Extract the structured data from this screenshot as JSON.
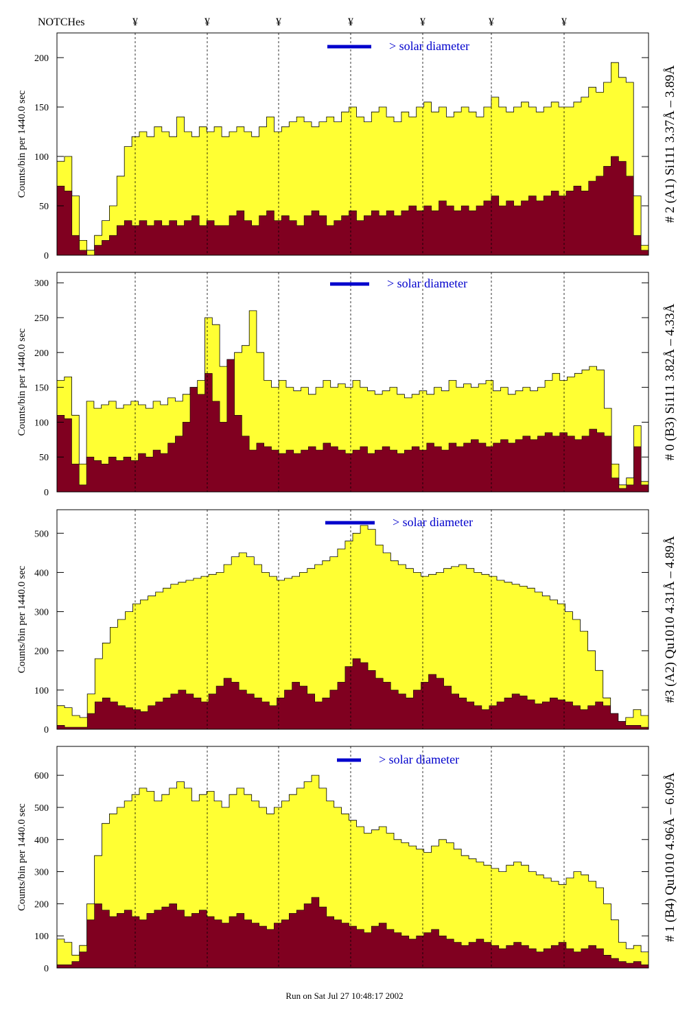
{
  "header": {
    "notches_label": "NOTCHes",
    "notch_symbol": "¥"
  },
  "footer": {
    "run_text": "Run on Sat Jul 27 10:48:17 2002"
  },
  "colors": {
    "hist_fill": "#ffff33",
    "dark_fill": "#800020",
    "legend": "#0000cc",
    "axis": "#000000"
  },
  "chart_data": [
    {
      "type": "area",
      "ylabel": "Counts/bin per   1440.0 sec",
      "side_label": "# 2 (A1) Si111  3.37Å – 3.89Å",
      "legend_text": "> solar diameter",
      "ylim": [
        0,
        225
      ],
      "yticks": [
        0,
        50,
        100,
        150,
        200
      ],
      "grid": false,
      "series": [
        {
          "values": [
            95,
            100,
            60,
            15,
            5,
            20,
            35,
            50,
            80,
            110,
            120,
            125,
            120,
            130,
            125,
            120,
            140,
            125,
            120,
            130,
            125,
            130,
            120,
            125,
            130,
            125,
            120,
            130,
            140,
            125,
            130,
            135,
            140,
            135,
            130,
            135,
            140,
            135,
            145,
            150,
            140,
            135,
            145,
            150,
            140,
            135,
            145,
            140,
            150,
            155,
            145,
            150,
            140,
            145,
            150,
            145,
            140,
            150,
            160,
            150,
            145,
            150,
            155,
            150,
            145,
            150,
            155,
            150,
            150,
            155,
            160,
            170,
            165,
            175,
            195,
            180,
            175,
            60,
            10
          ]
        },
        {
          "values": [
            70,
            65,
            20,
            5,
            0,
            10,
            15,
            20,
            30,
            35,
            30,
            35,
            30,
            35,
            30,
            35,
            30,
            35,
            40,
            30,
            35,
            30,
            30,
            40,
            45,
            35,
            30,
            40,
            45,
            35,
            40,
            35,
            30,
            40,
            45,
            40,
            30,
            35,
            40,
            45,
            35,
            40,
            45,
            40,
            45,
            40,
            45,
            50,
            45,
            50,
            45,
            55,
            50,
            45,
            50,
            45,
            50,
            55,
            60,
            50,
            55,
            50,
            55,
            60,
            55,
            60,
            65,
            60,
            65,
            70,
            65,
            75,
            80,
            90,
            100,
            95,
            80,
            20,
            5
          ]
        }
      ]
    },
    {
      "type": "area",
      "ylabel": "Counts/bin per   1440.0 sec",
      "side_label": "# 0 (B3) Si111  3.82Å – 4.33Å",
      "legend_text": "> solar diameter",
      "ylim": [
        0,
        315
      ],
      "yticks": [
        0,
        50,
        100,
        150,
        200,
        250,
        300
      ],
      "grid": false,
      "series": [
        {
          "values": [
            160,
            165,
            110,
            40,
            130,
            120,
            125,
            130,
            120,
            125,
            130,
            125,
            120,
            130,
            125,
            135,
            130,
            140,
            150,
            160,
            250,
            240,
            180,
            190,
            200,
            210,
            260,
            200,
            160,
            150,
            160,
            150,
            145,
            150,
            140,
            150,
            160,
            150,
            155,
            150,
            160,
            150,
            145,
            140,
            145,
            150,
            140,
            135,
            140,
            145,
            140,
            150,
            145,
            160,
            150,
            155,
            150,
            155,
            160,
            145,
            150,
            140,
            145,
            150,
            145,
            150,
            160,
            170,
            160,
            165,
            170,
            175,
            180,
            175,
            120,
            40,
            10,
            20,
            95,
            15
          ]
        },
        {
          "values": [
            110,
            105,
            40,
            10,
            50,
            45,
            40,
            50,
            45,
            50,
            45,
            55,
            50,
            60,
            55,
            70,
            80,
            100,
            150,
            140,
            170,
            130,
            100,
            190,
            110,
            80,
            60,
            70,
            65,
            60,
            55,
            60,
            55,
            60,
            65,
            60,
            70,
            65,
            60,
            55,
            60,
            65,
            55,
            60,
            65,
            60,
            55,
            60,
            65,
            60,
            70,
            65,
            60,
            70,
            65,
            70,
            75,
            70,
            65,
            70,
            75,
            70,
            75,
            80,
            75,
            80,
            85,
            80,
            85,
            80,
            75,
            80,
            90,
            85,
            80,
            20,
            5,
            10,
            65,
            10
          ]
        }
      ]
    },
    {
      "type": "area",
      "ylabel": "Counts/bin per   1440.0 sec",
      "side_label": "#3 (A2) Qu1010  4.31Å – 4.89Å",
      "legend_text": "> solar diameter",
      "ylim": [
        0,
        560
      ],
      "yticks": [
        0,
        100,
        200,
        300,
        400,
        500
      ],
      "grid": false,
      "series": [
        {
          "values": [
            60,
            55,
            35,
            30,
            90,
            180,
            220,
            260,
            280,
            300,
            320,
            330,
            340,
            350,
            360,
            370,
            375,
            380,
            385,
            390,
            395,
            400,
            420,
            440,
            450,
            440,
            420,
            400,
            390,
            380,
            385,
            390,
            400,
            410,
            420,
            430,
            440,
            460,
            480,
            500,
            520,
            510,
            470,
            450,
            430,
            420,
            410,
            400,
            390,
            395,
            400,
            410,
            415,
            420,
            410,
            400,
            395,
            390,
            380,
            375,
            370,
            365,
            360,
            350,
            340,
            330,
            320,
            300,
            280,
            250,
            200,
            150,
            80,
            40,
            20,
            30,
            50,
            35
          ]
        },
        {
          "values": [
            10,
            5,
            5,
            5,
            40,
            70,
            80,
            70,
            60,
            55,
            50,
            45,
            60,
            70,
            80,
            90,
            100,
            90,
            80,
            70,
            90,
            110,
            130,
            120,
            100,
            90,
            80,
            70,
            60,
            80,
            100,
            120,
            110,
            90,
            70,
            80,
            100,
            120,
            160,
            180,
            170,
            150,
            130,
            120,
            100,
            90,
            80,
            100,
            120,
            140,
            130,
            110,
            90,
            80,
            70,
            60,
            50,
            60,
            70,
            80,
            90,
            85,
            75,
            65,
            70,
            80,
            75,
            70,
            60,
            50,
            60,
            70,
            60,
            40,
            20,
            10,
            10,
            5
          ]
        }
      ]
    },
    {
      "type": "area",
      "ylabel": "Counts/bin per   1440.0 sec",
      "side_label": "# 1 (B4) Qu1010 4.96Å – 6.09Å",
      "legend_text": "> solar diameter",
      "ylim": [
        0,
        690
      ],
      "yticks": [
        0,
        100,
        200,
        300,
        400,
        500,
        600
      ],
      "grid": false,
      "series": [
        {
          "values": [
            90,
            80,
            40,
            70,
            200,
            350,
            450,
            480,
            500,
            520,
            540,
            560,
            550,
            520,
            540,
            560,
            580,
            560,
            520,
            540,
            550,
            520,
            500,
            540,
            560,
            540,
            520,
            500,
            480,
            500,
            520,
            540,
            560,
            580,
            600,
            560,
            520,
            500,
            480,
            460,
            440,
            420,
            430,
            440,
            420,
            400,
            390,
            380,
            370,
            360,
            380,
            400,
            390,
            370,
            350,
            340,
            330,
            320,
            310,
            300,
            320,
            330,
            320,
            300,
            290,
            280,
            270,
            260,
            280,
            300,
            290,
            270,
            250,
            200,
            150,
            80,
            60,
            70,
            50
          ]
        },
        {
          "values": [
            10,
            10,
            20,
            50,
            150,
            200,
            180,
            160,
            170,
            180,
            160,
            150,
            170,
            180,
            190,
            200,
            180,
            160,
            170,
            180,
            160,
            150,
            140,
            160,
            170,
            150,
            140,
            130,
            120,
            140,
            150,
            170,
            180,
            200,
            220,
            190,
            160,
            150,
            140,
            130,
            120,
            110,
            130,
            140,
            120,
            110,
            100,
            90,
            100,
            110,
            120,
            100,
            90,
            80,
            70,
            80,
            90,
            80,
            70,
            60,
            70,
            80,
            70,
            60,
            50,
            60,
            70,
            80,
            60,
            50,
            60,
            70,
            60,
            40,
            30,
            20,
            15,
            20,
            10
          ]
        }
      ]
    }
  ]
}
